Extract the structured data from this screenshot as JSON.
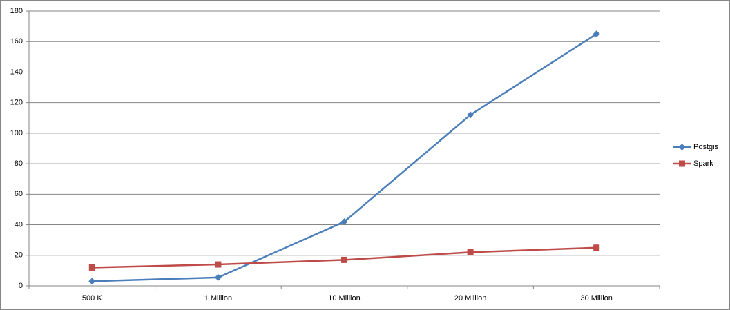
{
  "chart_data": {
    "type": "line",
    "categories": [
      "500 K",
      "1 Million",
      "10 Million",
      "20 Million",
      "30 Million"
    ],
    "series": [
      {
        "name": "Postgis",
        "color": "#4a7ebb",
        "marker": "diamond",
        "values": [
          3,
          5.5,
          42,
          112,
          165
        ]
      },
      {
        "name": "Spark",
        "color": "#be4b48",
        "marker": "square",
        "values": [
          12,
          14,
          17,
          22,
          25
        ]
      }
    ],
    "ylim": [
      0,
      180
    ],
    "yticks": [
      0,
      20,
      40,
      60,
      80,
      100,
      120,
      140,
      160,
      180
    ],
    "grid": true,
    "legend": "right"
  }
}
